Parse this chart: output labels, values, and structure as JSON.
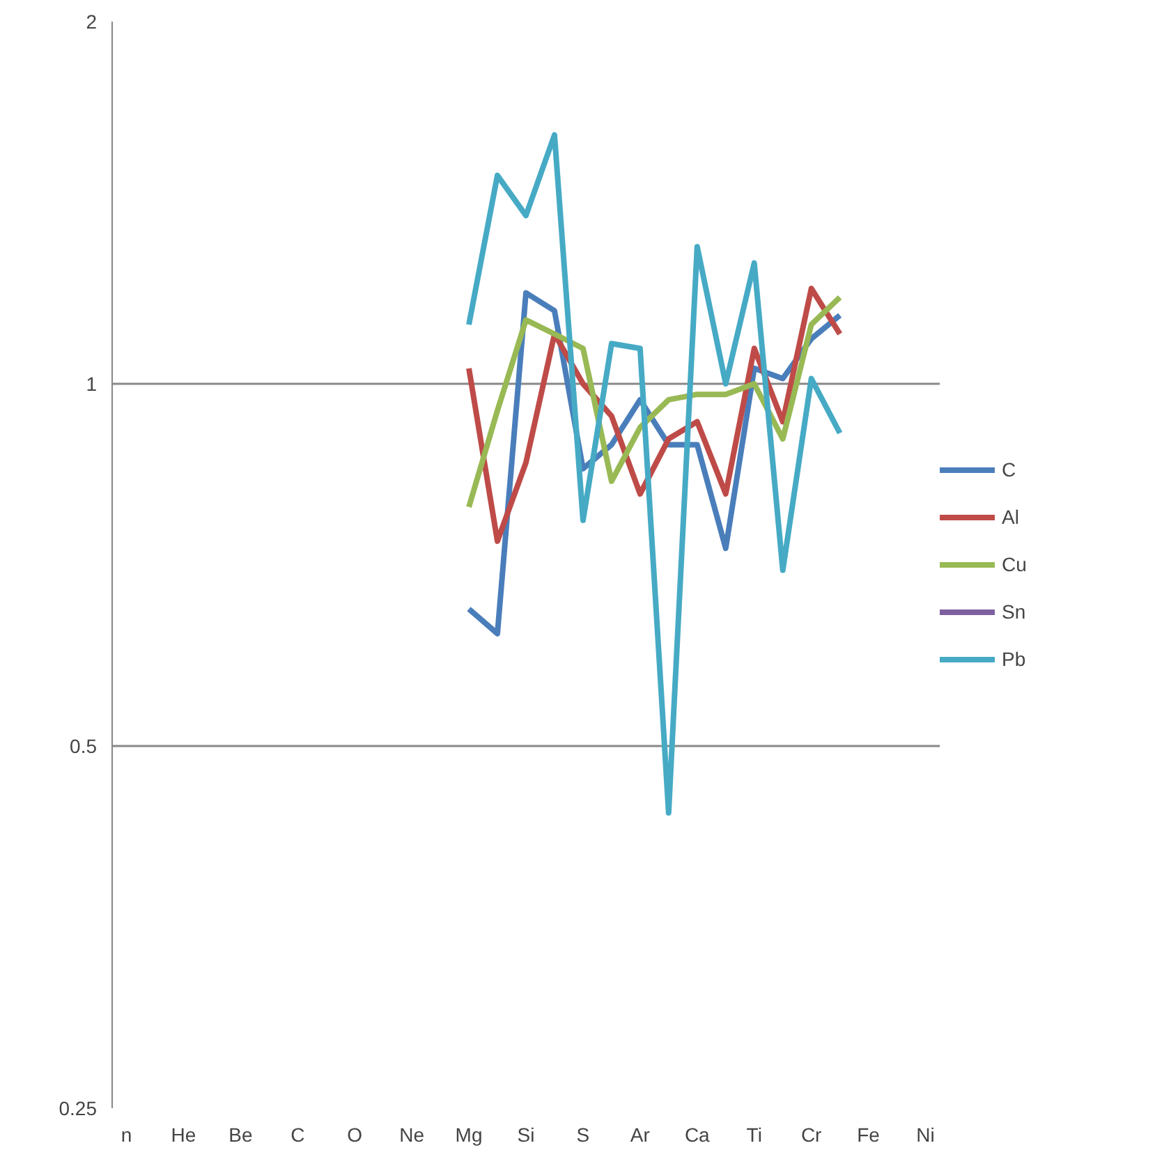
{
  "chart_data": {
    "type": "line",
    "categories": [
      "n",
      null,
      "He",
      null,
      "Be",
      null,
      "C",
      null,
      "O",
      null,
      "Ne",
      null,
      "Mg",
      null,
      "Si",
      null,
      "S",
      null,
      "Ar",
      null,
      "Ca",
      null,
      "Ti",
      null,
      "Cr",
      null,
      "Fe",
      null,
      "Ni"
    ],
    "series": [
      {
        "name": "C",
        "color": "#4a7ebb",
        "values": [
          null,
          null,
          null,
          null,
          null,
          null,
          null,
          null,
          null,
          null,
          null,
          null,
          0.65,
          0.62,
          1.19,
          1.15,
          0.85,
          0.89,
          0.97,
          0.89,
          0.89,
          0.73,
          1.03,
          1.01,
          1.09,
          1.14,
          null,
          null,
          null
        ]
      },
      {
        "name": "Al",
        "color": "#be4b48",
        "values": [
          null,
          null,
          null,
          null,
          null,
          null,
          null,
          null,
          null,
          null,
          null,
          null,
          1.03,
          0.74,
          0.86,
          1.1,
          1.0,
          0.94,
          0.81,
          0.9,
          0.93,
          0.81,
          1.07,
          0.93,
          1.2,
          1.1,
          null,
          null,
          null
        ]
      },
      {
        "name": "Cu",
        "color": "#98b954",
        "values": [
          null,
          null,
          null,
          null,
          null,
          null,
          null,
          null,
          null,
          null,
          null,
          null,
          0.79,
          0.95,
          1.13,
          1.1,
          1.07,
          0.83,
          0.92,
          0.97,
          0.98,
          0.98,
          1.0,
          0.9,
          1.12,
          1.18,
          null,
          null,
          null
        ]
      },
      {
        "name": "Sn",
        "color": "#7d60a0",
        "values": [
          null,
          null,
          null,
          null,
          null,
          null,
          null,
          null,
          null,
          null,
          null,
          null,
          null,
          null,
          null,
          null,
          null,
          null,
          null,
          null,
          null,
          null,
          null,
          null,
          null,
          null,
          null,
          null,
          null
        ]
      },
      {
        "name": "Pb",
        "color": "#46aac5",
        "values": [
          null,
          null,
          null,
          null,
          null,
          null,
          null,
          null,
          null,
          null,
          null,
          null,
          1.12,
          1.49,
          1.38,
          1.61,
          0.77,
          1.08,
          1.07,
          0.44,
          1.3,
          1.0,
          1.26,
          0.7,
          1.01,
          0.91,
          null,
          null,
          null
        ]
      }
    ],
    "log": true,
    "ylim": [
      0.25,
      2
    ],
    "yticks": [
      0.25,
      0.5,
      1,
      2
    ],
    "grid": "y",
    "legend": "right",
    "marker": "none",
    "line_style": "solid"
  }
}
